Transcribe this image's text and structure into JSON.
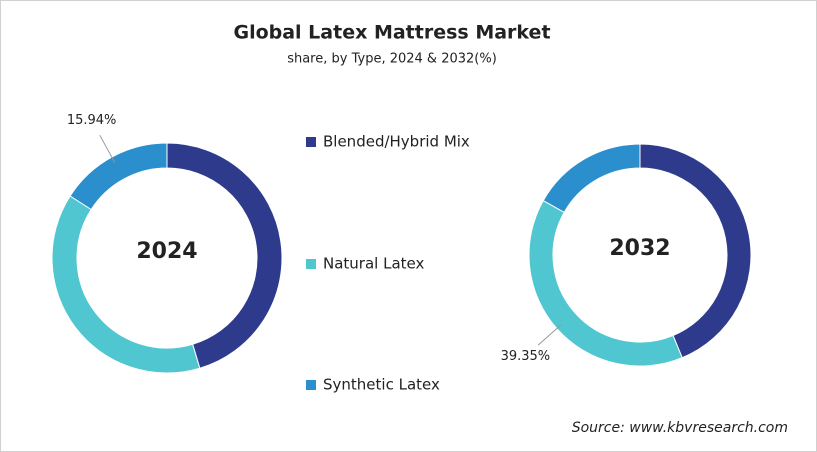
{
  "title": "Global Latex Mattress Market",
  "subtitle": "share, by Type, 2024 & 2032(%)",
  "source": "Source: www.kbvresearch.com",
  "chart_data": [
    {
      "type": "pie",
      "center_label": "2024",
      "categories": [
        "Blended/Hybrid Mix",
        "Natural Latex",
        "Synthetic Latex"
      ],
      "values": [
        45.4,
        38.66,
        15.94
      ],
      "value_labels": [
        null,
        null,
        "15.94%"
      ],
      "colors": [
        "#2e3a8c",
        "#4fc6d0",
        "#2a8fcc"
      ]
    },
    {
      "type": "pie",
      "center_label": "2032",
      "categories": [
        "Blended/Hybrid Mix",
        "Natural Latex",
        "Synthetic Latex"
      ],
      "values": [
        43.8,
        39.35,
        16.85
      ],
      "value_labels": [
        null,
        "39.35%",
        null
      ],
      "colors": [
        "#2e3a8c",
        "#4fc6d0",
        "#2a8fcc"
      ]
    }
  ]
}
